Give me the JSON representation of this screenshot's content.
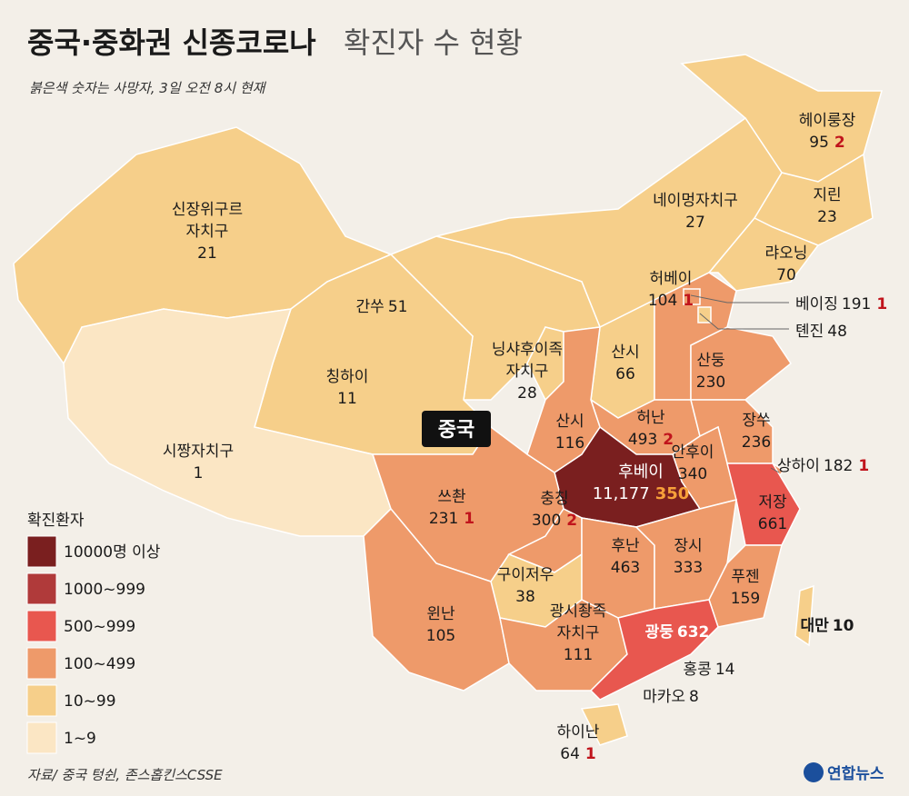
{
  "header": {
    "title_bold": "중국·중화권 신종코로나",
    "title_light": "확진자 수 현황",
    "subtitle": "붉은색 숫자는 사망자, 3일 오전 8시 현재"
  },
  "country_label": "중국",
  "regions": [
    {
      "name": [
        "헤이룽장"
      ],
      "cases": "95",
      "deaths": "2",
      "color": "#f6cf8a"
    },
    {
      "name": [
        "지린"
      ],
      "cases": "23",
      "color": "#f6cf8a"
    },
    {
      "name": [
        "랴오닝"
      ],
      "cases": "70",
      "color": "#f6cf8a"
    },
    {
      "name": [
        "네이멍자치구"
      ],
      "cases": "27",
      "color": "#f6cf8a"
    },
    {
      "name": [
        "신장위구르",
        "자치구"
      ],
      "cases": "21",
      "color": "#f6cf8a"
    },
    {
      "name": [
        "간쑤"
      ],
      "cases": "51",
      "color": "#f6cf8a"
    },
    {
      "name": [
        "칭하이"
      ],
      "cases": "11",
      "color": "#f6cf8a"
    },
    {
      "name": [
        "시짱자치구"
      ],
      "cases": "1",
      "color": "#fbe6c4"
    },
    {
      "name": [
        "닝샤후이족",
        "자치구"
      ],
      "cases": "28",
      "color": "#f6cf8a"
    },
    {
      "name": [
        "산시"
      ],
      "cases": "66",
      "color": "#f6cf8a"
    },
    {
      "name": [
        "허베이"
      ],
      "cases": "104",
      "deaths": "1",
      "color": "#ee9a6a"
    },
    {
      "name": [
        "베이징"
      ],
      "cases": "191",
      "deaths": "1",
      "color": "#ee9a6a"
    },
    {
      "name": [
        "톈진"
      ],
      "cases": "48",
      "color": "#f6cf8a"
    },
    {
      "name": [
        "산둥"
      ],
      "cases": "230",
      "color": "#ee9a6a"
    },
    {
      "name": [
        "허난"
      ],
      "cases": "493",
      "deaths": "2",
      "color": "#ee9a6a"
    },
    {
      "name": [
        "장쑤"
      ],
      "cases": "236",
      "color": "#ee9a6a"
    },
    {
      "name": [
        "안후이"
      ],
      "cases": "340",
      "color": "#ee9a6a"
    },
    {
      "name": [
        "상하이"
      ],
      "cases": "182",
      "deaths": "1",
      "color": "#ee9a6a"
    },
    {
      "name": [
        "후베이"
      ],
      "cases": "11,177",
      "deaths": "350",
      "color": "#7a1f1f"
    },
    {
      "name": [
        "저장"
      ],
      "cases": "661",
      "color": "#e8574f"
    },
    {
      "name": [
        "쓰촨"
      ],
      "cases": "231",
      "deaths": "1",
      "color": "#ee9a6a"
    },
    {
      "name": [
        "충칭"
      ],
      "cases": "300",
      "deaths": "2",
      "color": "#ee9a6a"
    },
    {
      "name": [
        "구이저우"
      ],
      "cases": "38",
      "color": "#f6cf8a"
    },
    {
      "name": [
        "후난"
      ],
      "cases": "463",
      "color": "#ee9a6a"
    },
    {
      "name": [
        "장시"
      ],
      "cases": "333",
      "color": "#ee9a6a"
    },
    {
      "name": [
        "푸젠"
      ],
      "cases": "159",
      "color": "#ee9a6a"
    },
    {
      "name": [
        "윈난"
      ],
      "cases": "105",
      "color": "#ee9a6a"
    },
    {
      "name": [
        "광시좡족",
        "자치구"
      ],
      "cases": "111",
      "color": "#ee9a6a"
    },
    {
      "name": [
        "광둥"
      ],
      "cases": "632",
      "color": "#e8574f"
    },
    {
      "name": [
        "산시"
      ],
      "cases": "116",
      "color": "#ee9a6a"
    },
    {
      "name": [
        "홍콩"
      ],
      "cases": "14"
    },
    {
      "name": [
        "마카오"
      ],
      "cases": "8"
    },
    {
      "name": [
        "대만"
      ],
      "cases": "10",
      "color": "#f6cf8a"
    },
    {
      "name": [
        "하이난"
      ],
      "cases": "64",
      "deaths": "1",
      "color": "#f6cf8a"
    }
  ],
  "legend": {
    "title": "확진환자",
    "items": [
      {
        "label": "10000명 이상",
        "color": "#7a1f1f"
      },
      {
        "label": "1000~999",
        "color": "#b03a3a"
      },
      {
        "label": "500~999",
        "color": "#e8574f"
      },
      {
        "label": "100~499",
        "color": "#ee9a6a"
      },
      {
        "label": "10~99",
        "color": "#f6cf8a"
      },
      {
        "label": "1~9",
        "color": "#fbe6c4"
      }
    ]
  },
  "source": "자료/ 중국 텅쉰, 존스홉킨스CSSE",
  "logo": "연합뉴스"
}
